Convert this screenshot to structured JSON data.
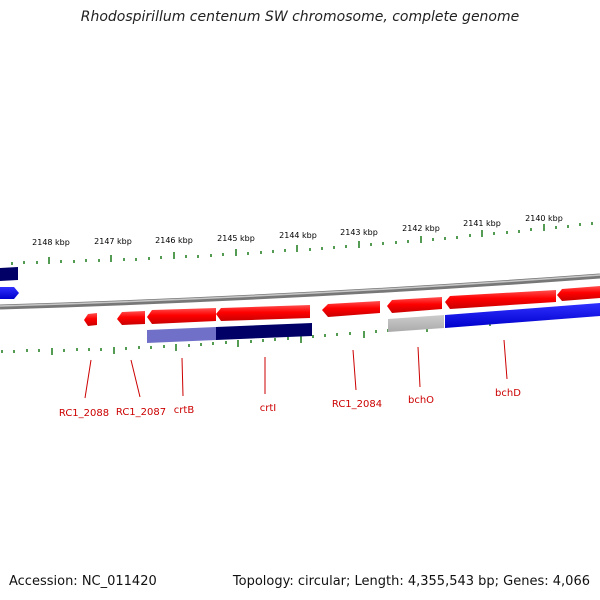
{
  "title": "Rhodospirillum centenum SW chromosome, complete genome",
  "footer": {
    "accession": "Accession: NC_011420",
    "summary": "Topology: circular; Length: 4,355,543 bp; Genes: 4,066"
  },
  "colors": {
    "forward_gene": "#ff0000",
    "reverse_gene": "#0000ee",
    "rna_gene": "#9999cc",
    "unknown_gene": "#bbbbbb",
    "backbone": "#888888",
    "tick": "#1a7a1a",
    "gene_label": "#cc0000",
    "kbp_label": "#000000"
  },
  "kbp_labels": [
    "2148 kbp",
    "2147 kbp",
    "2146 kbp",
    "2145 kbp",
    "2144 kbp",
    "2143 kbp",
    "2142 kbp",
    "2141 kbp",
    "2140 kbp"
  ],
  "gene_labels": [
    "RC1_2088",
    "RC1_2087",
    "crtB",
    "crtI",
    "RC1_2084",
    "bchO",
    "bchD"
  ]
}
